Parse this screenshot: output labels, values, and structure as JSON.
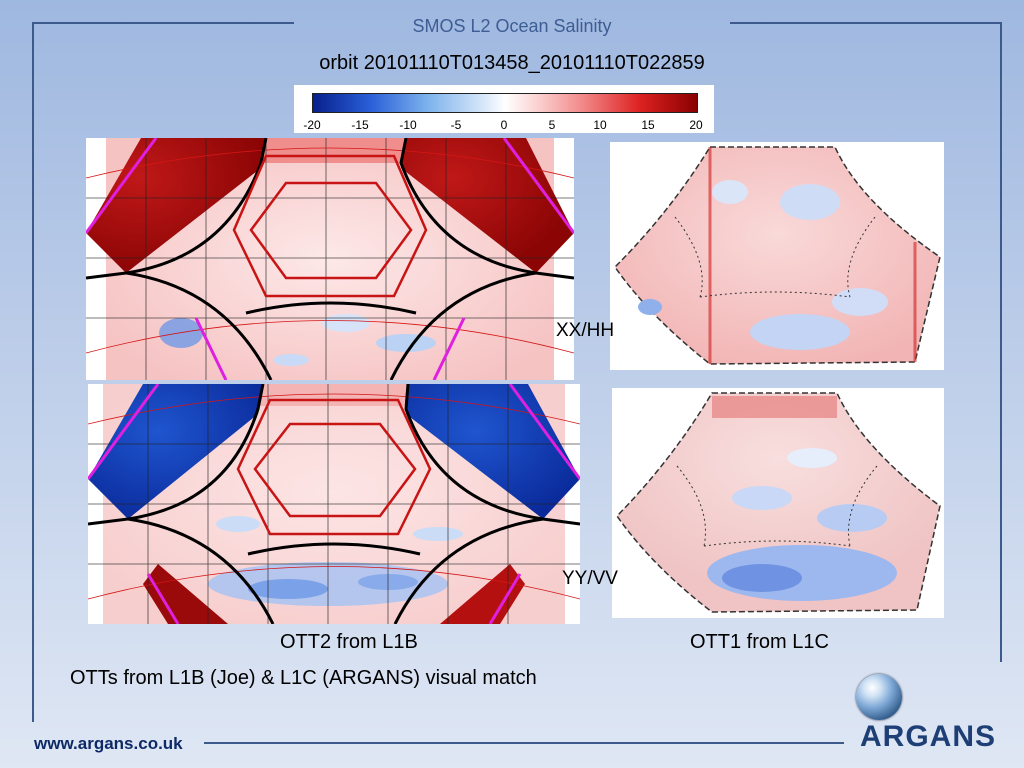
{
  "header": {
    "title": "SMOS L2 Ocean Salinity"
  },
  "orbit_title": "orbit 20101110T013458_20101110T022859",
  "colorbar": {
    "min": -20,
    "max": 20,
    "ticks": [
      "-20",
      "-15",
      "-10",
      "-5",
      "0",
      "5",
      "10",
      "15",
      "20"
    ],
    "colors": [
      "#08208c",
      "#2a5fd8",
      "#ffffff",
      "#dd2222",
      "#8a0000"
    ]
  },
  "labels": {
    "xx_hh": "XX/HH",
    "yy_vv": "YY/VV",
    "ott2": "OTT2 from L1B",
    "ott1": "OTT1 from L1C",
    "summary": "OTTs from L1B (Joe) & L1C (ARGANS) visual match"
  },
  "footer": {
    "url": "www.argans.co.uk",
    "logo_text": "ARGANS"
  },
  "colors": {
    "accent": "#3c5a8c",
    "title_blue": "#3e5d94",
    "boundary_magenta": "#e020e0",
    "footer_text": "#0d2a66"
  }
}
